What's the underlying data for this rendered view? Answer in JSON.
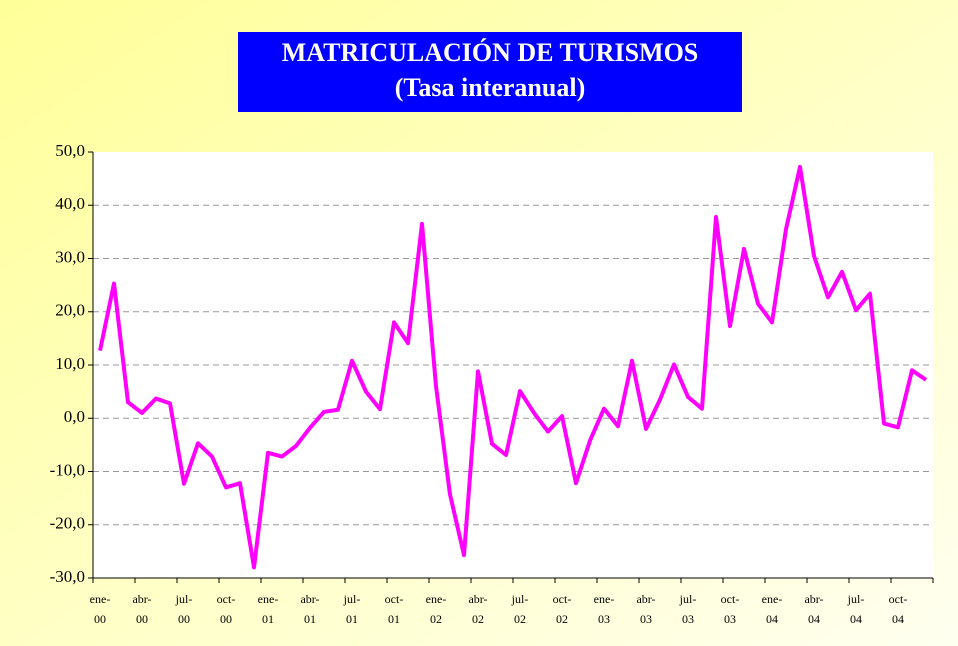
{
  "chart_data": {
    "type": "line",
    "title": "MATRICULACIÓN DE TURISMOS",
    "subtitle": "(Tasa interanual)",
    "categories": [
      "ene-\n00",
      null,
      null,
      "abr-\n00",
      null,
      null,
      "jul-\n00",
      null,
      null,
      "oct-\n00",
      null,
      null,
      "ene-\n01",
      null,
      null,
      "abr-\n01",
      null,
      null,
      "jul-\n01",
      null,
      null,
      "oct-\n01",
      null,
      null,
      "ene-\n02",
      null,
      null,
      "abr-\n02",
      null,
      null,
      "jul-\n02",
      null,
      null,
      "oct-\n02",
      null,
      null,
      "ene-\n03",
      null,
      null,
      "abr-\n03",
      null,
      null,
      "jul-\n03",
      null,
      null,
      "oct-\n03",
      null,
      null,
      "ene-\n04",
      null,
      null,
      "abr-\n04",
      null,
      null,
      "jul-\n04",
      null,
      null,
      "oct-\n04",
      null,
      null
    ],
    "series": [
      {
        "name": "Tasa interanual",
        "color": "#ff00ff",
        "values": [
          12.7,
          25.3,
          3,
          1,
          3.7,
          2.8,
          -12.3,
          -4.7,
          -7.2,
          -13,
          -12.2,
          -28,
          -6.5,
          -7.2,
          -5.2,
          -1.8,
          1.2,
          1.6,
          10.8,
          5,
          1.7,
          18,
          14.1,
          36.5,
          6,
          -14.3,
          -25.7,
          8.8,
          -4.8,
          -6.9,
          5.1,
          1,
          -2.5,
          0.4,
          -12.2,
          -4.2,
          1.8,
          -1.5,
          10.8,
          -2,
          3.5,
          10.1,
          4,
          1.8,
          37.8,
          17.3,
          31.8,
          21.5,
          18,
          35.5,
          47.2,
          30.5,
          22.7,
          27.5,
          20.3,
          23.4,
          -1,
          -1.7,
          9,
          7.2
        ]
      }
    ],
    "ylim": [
      -30,
      50
    ],
    "yticks": [
      {
        "value": -30,
        "label": "-30,0"
      },
      {
        "value": -20,
        "label": "-20,0"
      },
      {
        "value": -10,
        "label": "-10,0"
      },
      {
        "value": 0,
        "label": "0,0"
      },
      {
        "value": 10,
        "label": "10,0"
      },
      {
        "value": 20,
        "label": "20,0"
      },
      {
        "value": 30,
        "label": "30,0"
      },
      {
        "value": 40,
        "label": "40,0"
      },
      {
        "value": 50,
        "label": "50,0"
      }
    ],
    "grid": true
  }
}
